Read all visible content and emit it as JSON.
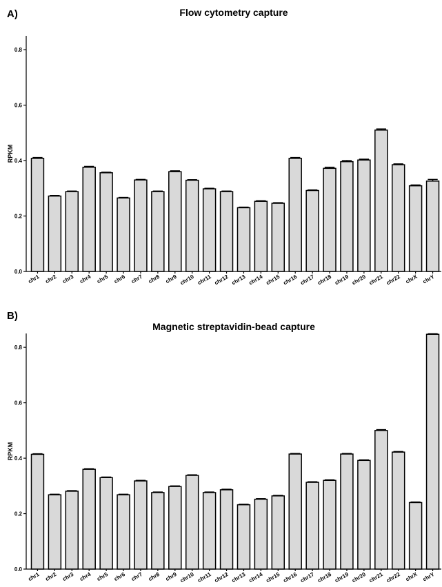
{
  "chart_data": [
    {
      "type": "bar",
      "panel_label": "A)",
      "title": "Flow cytometry capture",
      "ylabel": "RPKM",
      "xlabel": "",
      "ylim": [
        0,
        0.85
      ],
      "yticks": [
        "0.0",
        "0.2",
        "0.4",
        "0.6",
        "0.8"
      ],
      "grid": false,
      "categories": [
        "chr1",
        "chr2",
        "chr3",
        "chr4",
        "chr5",
        "chr6",
        "chr7",
        "chr8",
        "chr9",
        "chr10",
        "chr11",
        "chr12",
        "chr13",
        "chr14",
        "chr15",
        "chr16",
        "chr17",
        "chr18",
        "chr19",
        "chr20",
        "chr21",
        "chr22",
        "chrX",
        "chrY"
      ],
      "values": [
        0.408,
        0.272,
        0.288,
        0.376,
        0.356,
        0.265,
        0.33,
        0.288,
        0.36,
        0.329,
        0.298,
        0.288,
        0.23,
        0.253,
        0.246,
        0.408,
        0.292,
        0.372,
        0.396,
        0.402,
        0.51,
        0.385,
        0.309,
        0.326
      ],
      "errors": [
        0.003,
        0.002,
        0.002,
        0.003,
        0.002,
        0.002,
        0.002,
        0.002,
        0.003,
        0.002,
        0.002,
        0.002,
        0.002,
        0.002,
        0.002,
        0.003,
        0.002,
        0.004,
        0.004,
        0.003,
        0.004,
        0.003,
        0.003,
        0.006
      ]
    },
    {
      "type": "bar",
      "panel_label": "B)",
      "title": "Magnetic streptavidin-bead capture",
      "ylabel": "RPKM",
      "xlabel": "",
      "ylim": [
        0,
        0.85
      ],
      "yticks": [
        "0.0",
        "0.2",
        "0.4",
        "0.6",
        "0.8"
      ],
      "grid": false,
      "categories": [
        "chr1",
        "chr2",
        "chr3",
        "chr4",
        "chr5",
        "chr6",
        "chr7",
        "chr8",
        "chr9",
        "chr10",
        "chr11",
        "chr12",
        "chr13",
        "chr14",
        "chr15",
        "chr16",
        "chr17",
        "chr18",
        "chr19",
        "chr20",
        "chr21",
        "chr22",
        "chrX",
        "chrY"
      ],
      "values": [
        0.414,
        0.268,
        0.281,
        0.36,
        0.33,
        0.268,
        0.318,
        0.276,
        0.298,
        0.338,
        0.276,
        0.286,
        0.232,
        0.252,
        0.264,
        0.415,
        0.313,
        0.32,
        0.415,
        0.392,
        0.5,
        0.422,
        0.24,
        0.847
      ],
      "errors": [
        0.002,
        0.002,
        0.002,
        0.002,
        0.002,
        0.002,
        0.002,
        0.002,
        0.002,
        0.002,
        0.002,
        0.002,
        0.002,
        0.002,
        0.002,
        0.002,
        0.002,
        0.002,
        0.002,
        0.002,
        0.003,
        0.002,
        0.002,
        0.002
      ]
    }
  ]
}
